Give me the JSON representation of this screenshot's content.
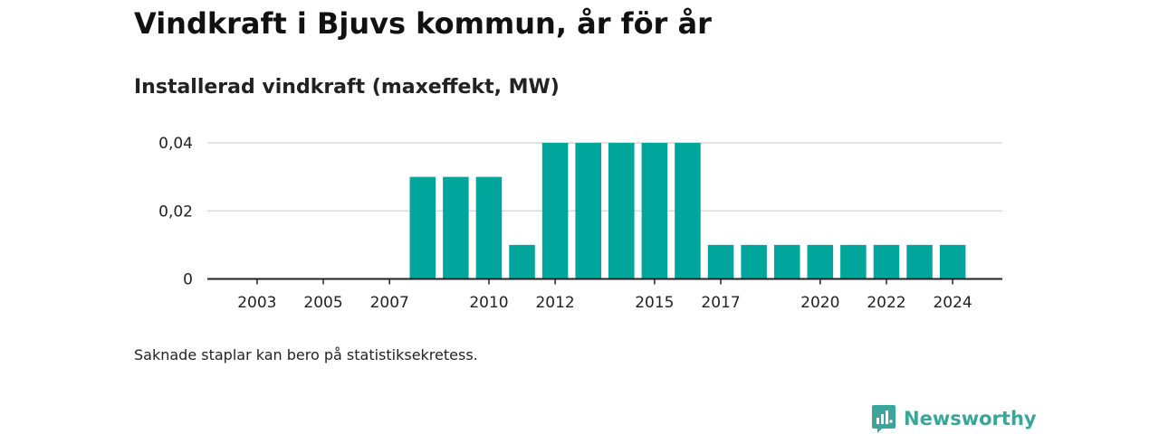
{
  "header": {
    "title": "Vindkraft i Bjuvs kommun, år för år",
    "subtitle": "Installerad vindkraft (maxeffekt, MW)"
  },
  "footer": {
    "note": "Saknade staplar kan bero på statistiksekretess.",
    "brand": "Newsworthy",
    "brand_icon": "newsworthy-logo-icon"
  },
  "colors": {
    "bar": "#00a69c",
    "brand": "#3aa598",
    "grid": "#d9d9d9",
    "axis": "#222222"
  },
  "chart_data": {
    "type": "bar",
    "title": "Installerad vindkraft (maxeffekt, MW)",
    "xlabel": "",
    "ylabel": "",
    "categories": [
      "2003",
      "2004",
      "2005",
      "2006",
      "2007",
      "2008",
      "2009",
      "2010",
      "2011",
      "2012",
      "2013",
      "2014",
      "2015",
      "2016",
      "2017",
      "2018",
      "2019",
      "2020",
      "2021",
      "2022",
      "2023",
      "2024"
    ],
    "values": [
      0,
      0,
      0,
      0,
      0,
      0.03,
      0.03,
      0.03,
      0.01,
      0.04,
      0.04,
      0.04,
      0.04,
      0.04,
      0.01,
      0.01,
      0.01,
      0.01,
      0.01,
      0.01,
      0.01,
      0.01
    ],
    "x_tick_labels": [
      "2003",
      "2005",
      "2007",
      "2010",
      "2012",
      "2015",
      "2017",
      "2020",
      "2022",
      "2024"
    ],
    "y_ticks": [
      {
        "value": 0,
        "label": "0"
      },
      {
        "value": 0.02,
        "label": "0,02"
      },
      {
        "value": 0.04,
        "label": "0,04"
      }
    ],
    "ylim": [
      0,
      0.04
    ],
    "grid": true
  }
}
